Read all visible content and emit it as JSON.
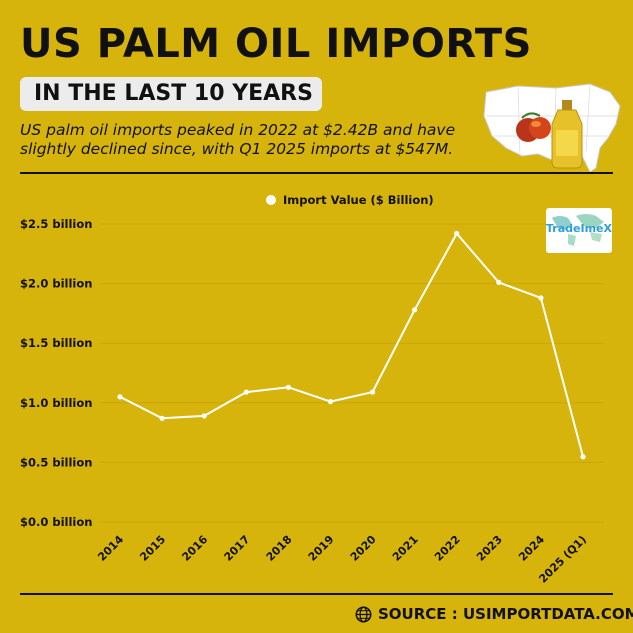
{
  "header": {
    "title": "US PALM OIL IMPORTS",
    "subtitle": "IN THE LAST 10 YEARS",
    "summary": "US palm oil imports peaked in 2022 at $2.42B and have slightly declined since, with Q1 2025 imports at $547M."
  },
  "watermark": {
    "text": "TradeImeX"
  },
  "footer": {
    "source": "SOURCE : USIMPORTDATA.COM",
    "icon": "globe-icon"
  },
  "colors": {
    "background": "#d7b40c",
    "line": "#ffffff",
    "text": "#111111",
    "grid": "#c9a60a"
  },
  "chart_data": {
    "type": "line",
    "title": "",
    "xlabel": "",
    "ylabel": "",
    "categories": [
      "2014",
      "2015",
      "2016",
      "2017",
      "2018",
      "2019",
      "2020",
      "2021",
      "2022",
      "2023",
      "2024",
      "2025 (Q1)"
    ],
    "series": [
      {
        "name": "Import Value ($ Billion)",
        "values": [
          1.05,
          0.87,
          0.89,
          1.09,
          1.13,
          1.01,
          1.09,
          1.78,
          2.42,
          2.01,
          1.88,
          0.547
        ]
      }
    ],
    "ylim": [
      0,
      2.5
    ],
    "yticks": [
      {
        "value": 0.0,
        "label": "$0.0 billion"
      },
      {
        "value": 0.5,
        "label": "$0.5 billion"
      },
      {
        "value": 1.0,
        "label": "$1.0 billion"
      },
      {
        "value": 1.5,
        "label": "$1.5 billion"
      },
      {
        "value": 2.0,
        "label": "$2.0 billion"
      },
      {
        "value": 2.5,
        "label": "$2.5 billion"
      }
    ],
    "grid": true,
    "legend_position": "top-center"
  }
}
